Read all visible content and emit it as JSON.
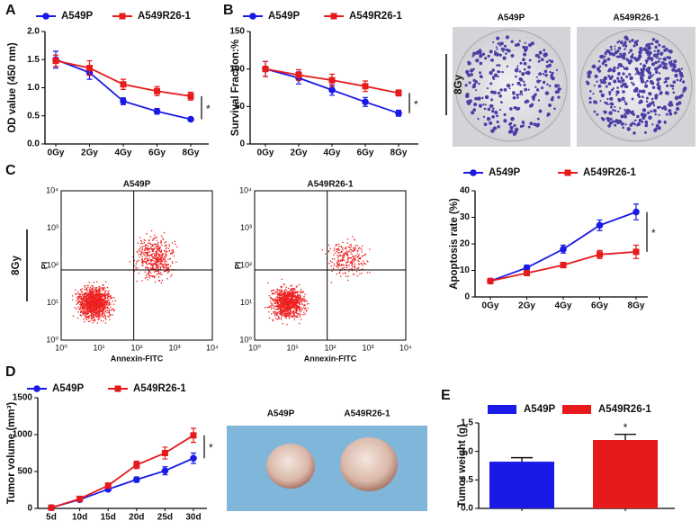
{
  "figure": {
    "panel_labels": [
      "A",
      "B",
      "C",
      "D",
      "E"
    ],
    "colony": {
      "dose": "8Gy",
      "titles": [
        "A549P",
        "A549R26-1"
      ]
    },
    "flow": {
      "dose": "8Gy",
      "plots": [
        {
          "title": "A549P",
          "xlabel": "Annexin-FITC",
          "ylabel": "PI",
          "xtick_labels": [
            "10⁰",
            "10¹",
            "10²",
            "10³",
            "10⁴"
          ],
          "ytick_labels": [
            "10⁰",
            "10¹",
            "10²",
            "10³",
            "10⁴"
          ]
        },
        {
          "title": "A549R26-1",
          "xlabel": "Annexin-FITC",
          "ylabel": "PI",
          "xtick_labels": [
            "10⁰",
            "10¹",
            "10²",
            "10³",
            "10⁴"
          ],
          "ytick_labels": [
            "10⁰",
            "10¹",
            "10²",
            "10³",
            "10⁴"
          ]
        }
      ]
    },
    "tumor_photo": {
      "titles": [
        "A549P",
        "A549R26-1"
      ]
    }
  },
  "chart_data": [
    {
      "type": "line",
      "ylabel": "OD value (450 nm)",
      "categories": [
        "0Gy",
        "2Gy",
        "4Gy",
        "6Gy",
        "8Gy"
      ],
      "series": [
        {
          "name": "A549P",
          "color": "#1a1ae6",
          "marker": "circle",
          "values": [
            1.5,
            1.27,
            0.76,
            0.58,
            0.44
          ],
          "errors": [
            0.15,
            0.12,
            0.06,
            0.05,
            0.03
          ]
        },
        {
          "name": "A549R26-1",
          "color": "#e61a1a",
          "marker": "square",
          "values": [
            1.48,
            1.35,
            1.06,
            0.94,
            0.85
          ],
          "errors": [
            0.1,
            0.13,
            0.09,
            0.08,
            0.07
          ]
        }
      ],
      "ylim": [
        0,
        2
      ],
      "yticks": [
        {
          "value": 0,
          "label": "0.0"
        },
        {
          "value": 0.5,
          "label": "0.5"
        },
        {
          "value": 1,
          "label": "1.0"
        },
        {
          "value": 1.5,
          "label": "1.5"
        },
        {
          "value": 2,
          "label": "2.0"
        }
      ],
      "annotation": "*"
    },
    {
      "type": "line",
      "ylabel": "Survival Fraction:%",
      "categories": [
        "0Gy",
        "2Gy",
        "4Gy",
        "6Gy",
        "8Gy"
      ],
      "series": [
        {
          "name": "A549P",
          "color": "#1a1ae6",
          "marker": "circle",
          "values": [
            100,
            88,
            72,
            56,
            41
          ],
          "errors": [
            10,
            8,
            7,
            6,
            4
          ]
        },
        {
          "name": "A549R26-1",
          "color": "#e61a1a",
          "marker": "square",
          "values": [
            100,
            92,
            85,
            77,
            68
          ],
          "errors": [
            10,
            7,
            8,
            7,
            4
          ]
        }
      ],
      "ylim": [
        0,
        150
      ],
      "yticks": [
        0,
        50,
        100,
        150
      ],
      "annotation": "*"
    },
    {
      "type": "line",
      "ylabel": "Apoptosis rate (%)",
      "categories": [
        "0Gy",
        "2Gy",
        "4Gy",
        "6Gy",
        "8Gy"
      ],
      "series": [
        {
          "name": "A549P",
          "color": "#1a1ae6",
          "marker": "circle",
          "values": [
            6,
            11,
            18,
            27,
            32
          ],
          "errors": [
            0.6,
            1,
            1.5,
            2,
            3
          ]
        },
        {
          "name": "A549R26-1",
          "color": "#e61a1a",
          "marker": "square",
          "values": [
            6,
            9,
            12,
            16,
            17
          ],
          "errors": [
            0.5,
            0.8,
            1,
            1.5,
            2.5
          ]
        }
      ],
      "ylim": [
        0,
        40
      ],
      "yticks": [
        0,
        10,
        20,
        30,
        40
      ],
      "annotation": "*"
    },
    {
      "type": "line",
      "ylabel": "Tumor volume (mm³)",
      "categories": [
        "5d",
        "10d",
        "15d",
        "20d",
        "25d",
        "30d"
      ],
      "series": [
        {
          "name": "A549P",
          "color": "#1a1ae6",
          "marker": "circle",
          "values": [
            10,
            120,
            260,
            390,
            510,
            680
          ],
          "errors": [
            10,
            25,
            25,
            35,
            55,
            70
          ]
        },
        {
          "name": "A549R26-1",
          "color": "#e61a1a",
          "marker": "square",
          "values": [
            10,
            130,
            310,
            590,
            750,
            990
          ],
          "errors": [
            10,
            25,
            30,
            50,
            80,
            95
          ]
        }
      ],
      "ylim": [
        0,
        1500
      ],
      "yticks": [
        0,
        500,
        1000,
        1500
      ],
      "annotation": "*"
    },
    {
      "type": "bar",
      "ylabel": "Tumor weight (g)",
      "series": [
        {
          "name": "A549P",
          "color": "#1a1ae6",
          "values": [
            0.82
          ],
          "errors": [
            0.07
          ]
        },
        {
          "name": "A549R26-1",
          "color": "#e61a1a",
          "values": [
            1.2
          ],
          "errors": [
            0.1
          ]
        }
      ],
      "ylim": [
        0,
        1.5
      ],
      "yticks": [
        {
          "value": 0,
          "label": "0.0"
        },
        {
          "value": 0.5,
          "label": "0.5"
        },
        {
          "value": 1,
          "label": "1.0"
        },
        {
          "value": 1.5,
          "label": "1.5"
        }
      ],
      "annotation": "*"
    }
  ]
}
